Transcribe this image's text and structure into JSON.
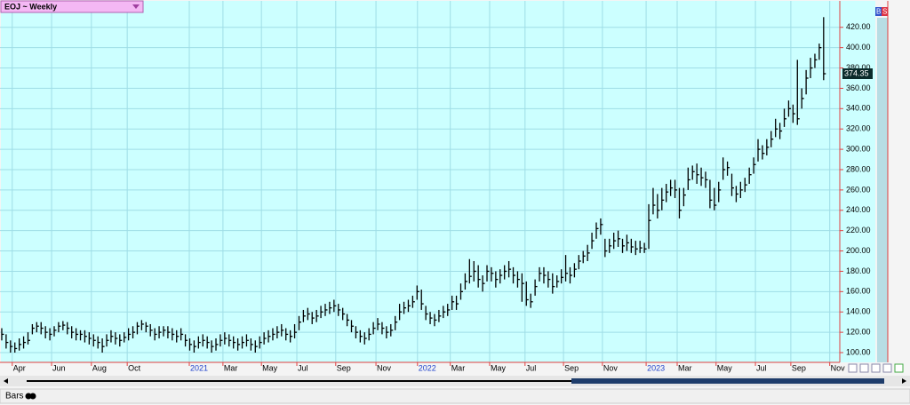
{
  "chart_data": {
    "type": "ohlc",
    "title": "EOJ ~ Weekly",
    "color": "#000000",
    "grid": true,
    "xlim": [
      -0.4,
      191.7
    ],
    "ylim": [
      90.4,
      442.5
    ],
    "xticks": [
      {
        "value": 2.4,
        "label": "Apr"
      },
      {
        "value": 11.4,
        "label": "Jun"
      },
      {
        "value": 20.5,
        "label": "Aug"
      },
      {
        "value": 28.7,
        "label": "Oct"
      },
      {
        "value": 42.9,
        "label": "2021"
      },
      {
        "value": 50.6,
        "label": "Mar"
      },
      {
        "value": 59.4,
        "label": "May"
      },
      {
        "value": 67.5,
        "label": "Jul"
      },
      {
        "value": 76.4,
        "label": "Sep"
      },
      {
        "value": 85.6,
        "label": "Nov"
      },
      {
        "value": 95.1,
        "label": "2022"
      },
      {
        "value": 102.6,
        "label": "Mar"
      },
      {
        "value": 111.6,
        "label": "May"
      },
      {
        "value": 119.7,
        "label": "Jul"
      },
      {
        "value": 128.5,
        "label": "Sep"
      },
      {
        "value": 137.4,
        "label": "Nov"
      },
      {
        "value": 147.4,
        "label": "2023"
      },
      {
        "value": 154.5,
        "label": "Mar"
      },
      {
        "value": 163.4,
        "label": "May"
      },
      {
        "value": 172.4,
        "label": "Jul"
      },
      {
        "value": 180.5,
        "label": "Sep"
      },
      {
        "value": 189.4,
        "label": "Nov"
      }
    ],
    "yticks": [
      {
        "value": 100,
        "label": "100.00"
      },
      {
        "value": 120,
        "label": "120.00"
      },
      {
        "value": 140,
        "label": "140.00"
      },
      {
        "value": 160,
        "label": "160.00"
      },
      {
        "value": 180,
        "label": "180.00"
      },
      {
        "value": 200,
        "label": "200.00"
      },
      {
        "value": 220,
        "label": "220.00"
      },
      {
        "value": 240,
        "label": "240.00"
      },
      {
        "value": 260,
        "label": "260.00"
      },
      {
        "value": 280,
        "label": "280.00"
      },
      {
        "value": 300,
        "label": "300.00"
      },
      {
        "value": 320,
        "label": "320.00"
      },
      {
        "value": 340,
        "label": "340.00"
      },
      {
        "value": 360,
        "label": "360.00"
      },
      {
        "value": 380,
        "label": "380.00"
      },
      {
        "value": 400,
        "label": "400.00"
      },
      {
        "value": 420,
        "label": "420.00"
      }
    ],
    "high": [
      124,
      118,
      112,
      110,
      114,
      116,
      120,
      128,
      130,
      130,
      126,
      124,
      126,
      130,
      131,
      130,
      126,
      124,
      122,
      122,
      120,
      118,
      116,
      114,
      118,
      122,
      120,
      118,
      120,
      124,
      126,
      130,
      132,
      130,
      128,
      124,
      126,
      126,
      126,
      124,
      122,
      124,
      118,
      114,
      112,
      116,
      118,
      116,
      112,
      114,
      118,
      120,
      118,
      116,
      114,
      116,
      118,
      114,
      112,
      116,
      120,
      122,
      124,
      126,
      128,
      124,
      122,
      128,
      136,
      142,
      144,
      140,
      142,
      146,
      148,
      150,
      152,
      148,
      144,
      138,
      132,
      126,
      122,
      120,
      124,
      130,
      134,
      130,
      126,
      128,
      136,
      148,
      150,
      152,
      156,
      166,
      162,
      146,
      140,
      138,
      142,
      146,
      148,
      156,
      156,
      168,
      178,
      192,
      190,
      186,
      176,
      186,
      184,
      180,
      182,
      186,
      190,
      184,
      180,
      178,
      170,
      158,
      172,
      184,
      184,
      180,
      178,
      176,
      182,
      196,
      184,
      188,
      196,
      200,
      206,
      218,
      228,
      232,
      212,
      212,
      218,
      220,
      212,
      216,
      212,
      210,
      210,
      208,
      246,
      262,
      256,
      262,
      266,
      270,
      270,
      262,
      262,
      282,
      284,
      286,
      282,
      278,
      270,
      262,
      268,
      292,
      288,
      276,
      264,
      268,
      272,
      282,
      292,
      310,
      304,
      310,
      318,
      330,
      326,
      340,
      348,
      344,
      388,
      360,
      378,
      390,
      394,
      404,
      430
    ],
    "low": [
      112,
      104,
      100,
      100,
      102,
      104,
      108,
      118,
      120,
      118,
      114,
      112,
      116,
      120,
      122,
      118,
      114,
      112,
      112,
      110,
      108,
      106,
      104,
      100,
      106,
      110,
      108,
      106,
      110,
      112,
      114,
      118,
      122,
      120,
      116,
      112,
      114,
      116,
      114,
      112,
      110,
      112,
      106,
      102,
      100,
      104,
      106,
      104,
      100,
      102,
      106,
      108,
      106,
      104,
      102,
      104,
      106,
      102,
      100,
      104,
      108,
      110,
      112,
      114,
      116,
      112,
      110,
      114,
      122,
      130,
      132,
      128,
      130,
      134,
      136,
      138,
      140,
      136,
      132,
      126,
      120,
      114,
      110,
      108,
      112,
      118,
      122,
      118,
      114,
      116,
      122,
      132,
      138,
      140,
      144,
      152,
      142,
      132,
      128,
      126,
      130,
      134,
      136,
      142,
      142,
      152,
      162,
      168,
      170,
      164,
      160,
      170,
      170,
      164,
      168,
      172,
      174,
      168,
      164,
      150,
      146,
      144,
      156,
      170,
      168,
      164,
      158,
      164,
      168,
      170,
      168,
      174,
      182,
      188,
      190,
      202,
      212,
      216,
      194,
      198,
      202,
      204,
      198,
      200,
      198,
      196,
      198,
      198,
      202,
      236,
      232,
      240,
      248,
      254,
      252,
      232,
      244,
      260,
      270,
      266,
      264,
      262,
      242,
      240,
      248,
      270,
      274,
      254,
      248,
      252,
      258,
      266,
      276,
      288,
      290,
      294,
      302,
      312,
      310,
      322,
      332,
      326,
      324,
      340,
      354,
      370,
      380,
      388,
      368
    ],
    "close": [
      118,
      110,
      106,
      104,
      108,
      110,
      112,
      124,
      126,
      124,
      120,
      118,
      122,
      126,
      127,
      124,
      120,
      118,
      118,
      116,
      114,
      112,
      110,
      106,
      112,
      116,
      114,
      112,
      115,
      118,
      120,
      126,
      128,
      126,
      122,
      118,
      120,
      122,
      120,
      118,
      116,
      118,
      112,
      108,
      106,
      110,
      112,
      110,
      106,
      108,
      112,
      114,
      112,
      110,
      108,
      110,
      112,
      108,
      106,
      110,
      114,
      116,
      118,
      120,
      122,
      118,
      116,
      120,
      130,
      136,
      138,
      134,
      136,
      140,
      142,
      144,
      146,
      142,
      138,
      132,
      126,
      120,
      116,
      114,
      118,
      124,
      128,
      124,
      120,
      122,
      130,
      140,
      144,
      146,
      150,
      160,
      148,
      138,
      134,
      132,
      136,
      140,
      142,
      150,
      148,
      160,
      170,
      175,
      180,
      172,
      168,
      180,
      178,
      172,
      176,
      180,
      182,
      176,
      172,
      168,
      152,
      150,
      165,
      178,
      176,
      172,
      165,
      170,
      174,
      178,
      176,
      182,
      190,
      195,
      198,
      210,
      222,
      226,
      200,
      205,
      210,
      212,
      205,
      208,
      204,
      202,
      203,
      202,
      230,
      245,
      240,
      250,
      258,
      262,
      260,
      240,
      255,
      270,
      278,
      275,
      272,
      270,
      250,
      245,
      260,
      280,
      282,
      262,
      256,
      260,
      265,
      275,
      285,
      300,
      296,
      302,
      310,
      320,
      318,
      330,
      340,
      335,
      330,
      350,
      370,
      380,
      388,
      400,
      374.35
    ]
  },
  "ui": {
    "buttons": [
      "B",
      "S"
    ],
    "footer": "Bars"
  }
}
